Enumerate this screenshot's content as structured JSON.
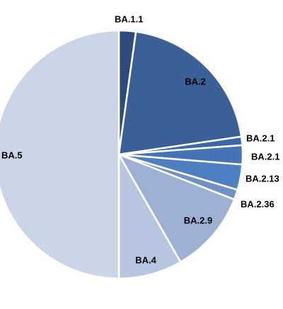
{
  "chart_data": {
    "type": "pie",
    "categories": [
      "BA.1.1",
      "BA.2",
      "BA.2.1",
      "BA.2.1",
      "BA.2.13",
      "BA.2.36",
      "BA.2.9",
      "BA.4",
      "BA.5"
    ],
    "values": [
      2.2,
      20.5,
      1.1,
      2.5,
      3.3,
      1.3,
      10.8,
      8.3,
      50
    ],
    "colors": [
      "#2f4b7c",
      "#3b5f97",
      "#3e67a5",
      "#4573b5",
      "#4e7fc3",
      "#7090c6",
      "#9eb1d4",
      "#b7c5e0",
      "#cad5e8"
    ]
  }
}
